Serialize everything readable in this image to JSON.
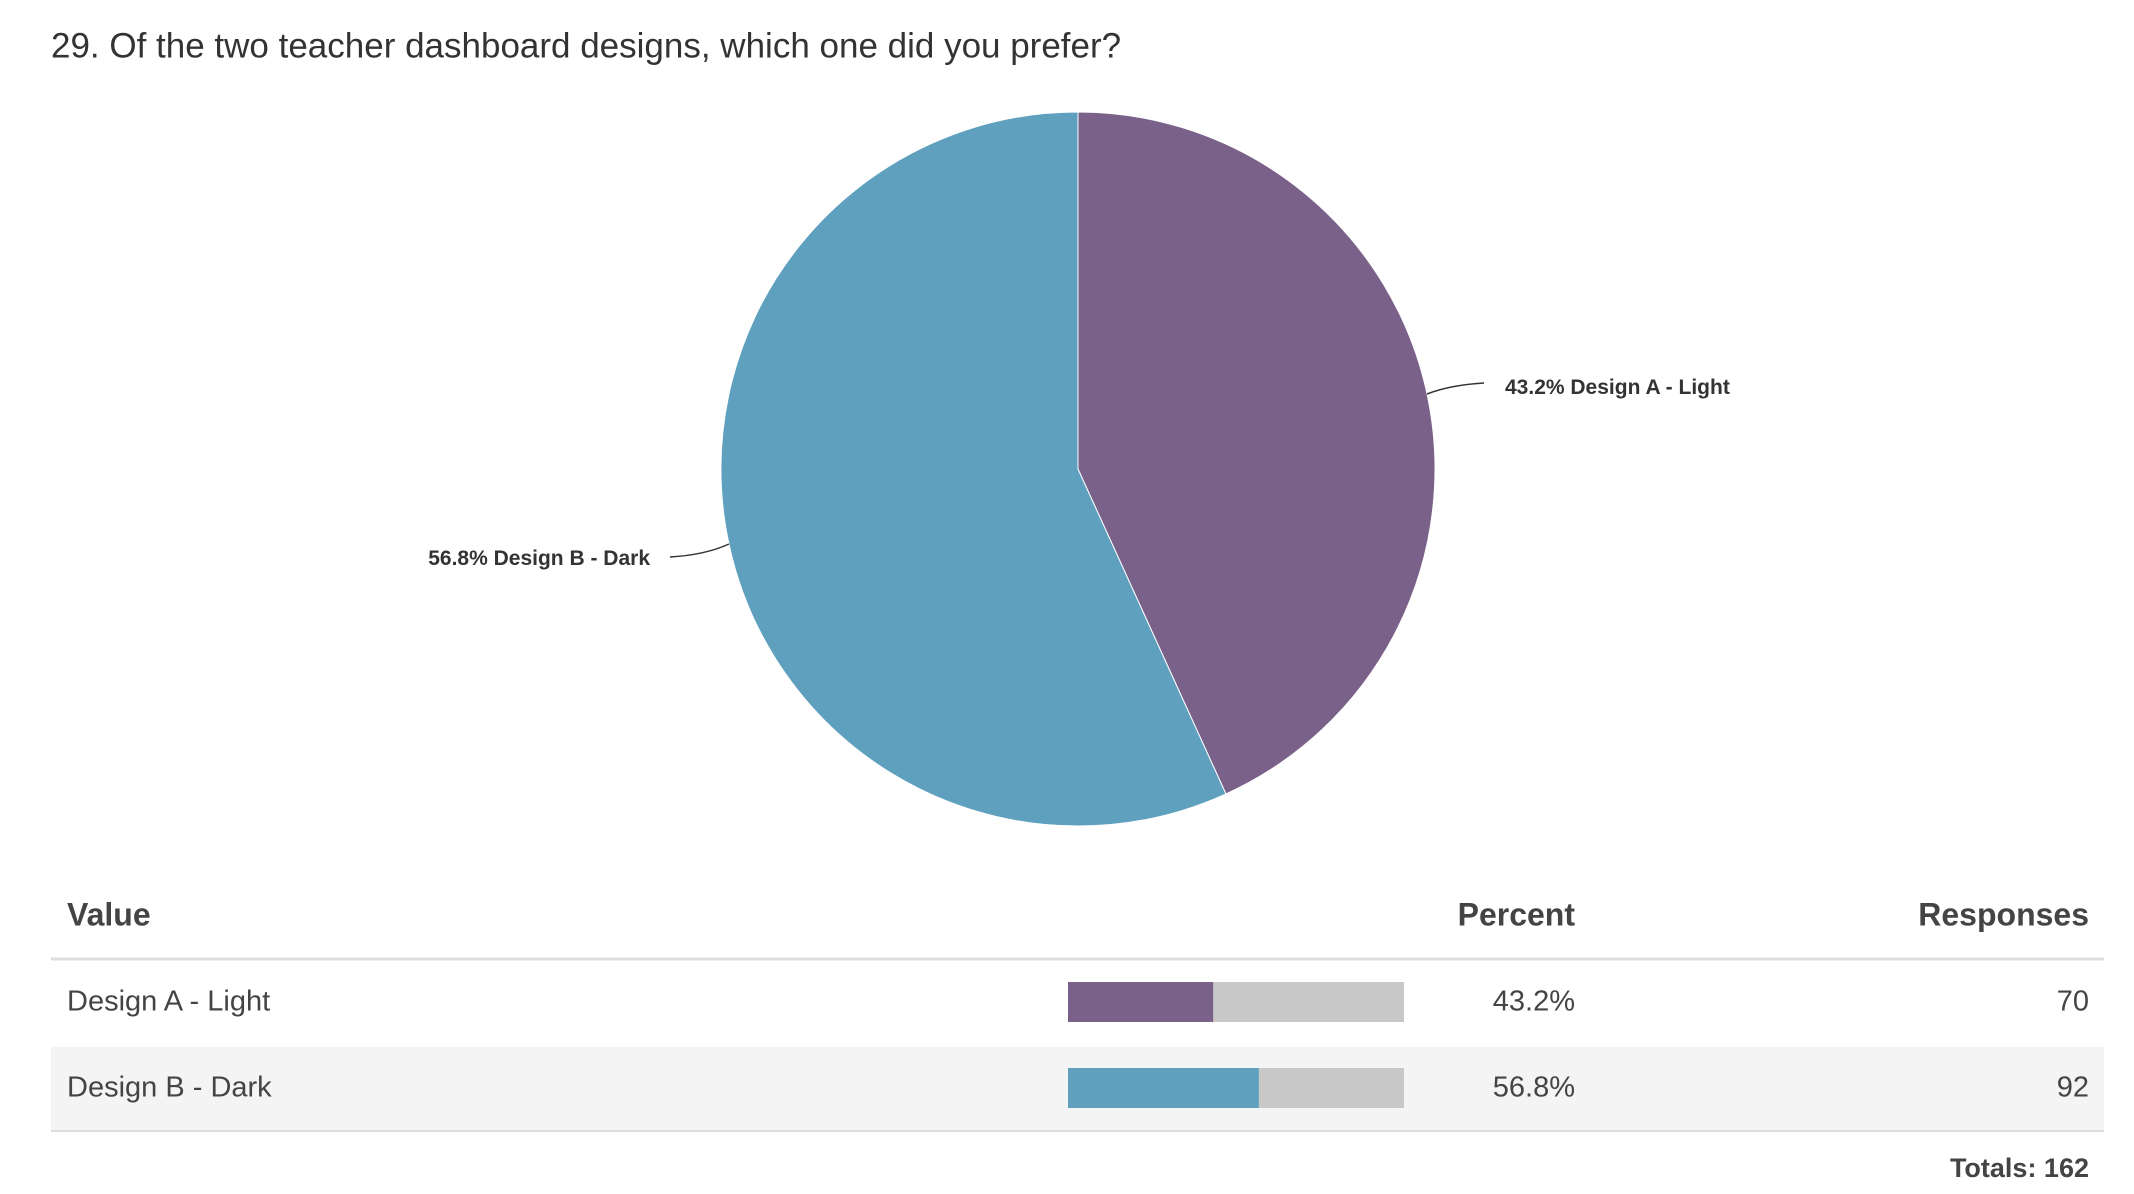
{
  "chart_data": {
    "type": "pie",
    "title": "29. Of the two teacher dashboard designs, which one did you prefer?",
    "categories": [
      "Design A - Light",
      "Design B - Dark"
    ],
    "values": [
      43.2,
      56.8
    ],
    "value_labels": [
      "43.2%",
      "56.8%"
    ],
    "colors": [
      "#7a6189",
      "#5fa0bf"
    ]
  },
  "table": {
    "headers": [
      "Value",
      "Percent",
      "Responses"
    ],
    "responses": [
      70,
      92
    ],
    "totals": "Totals: 162"
  }
}
